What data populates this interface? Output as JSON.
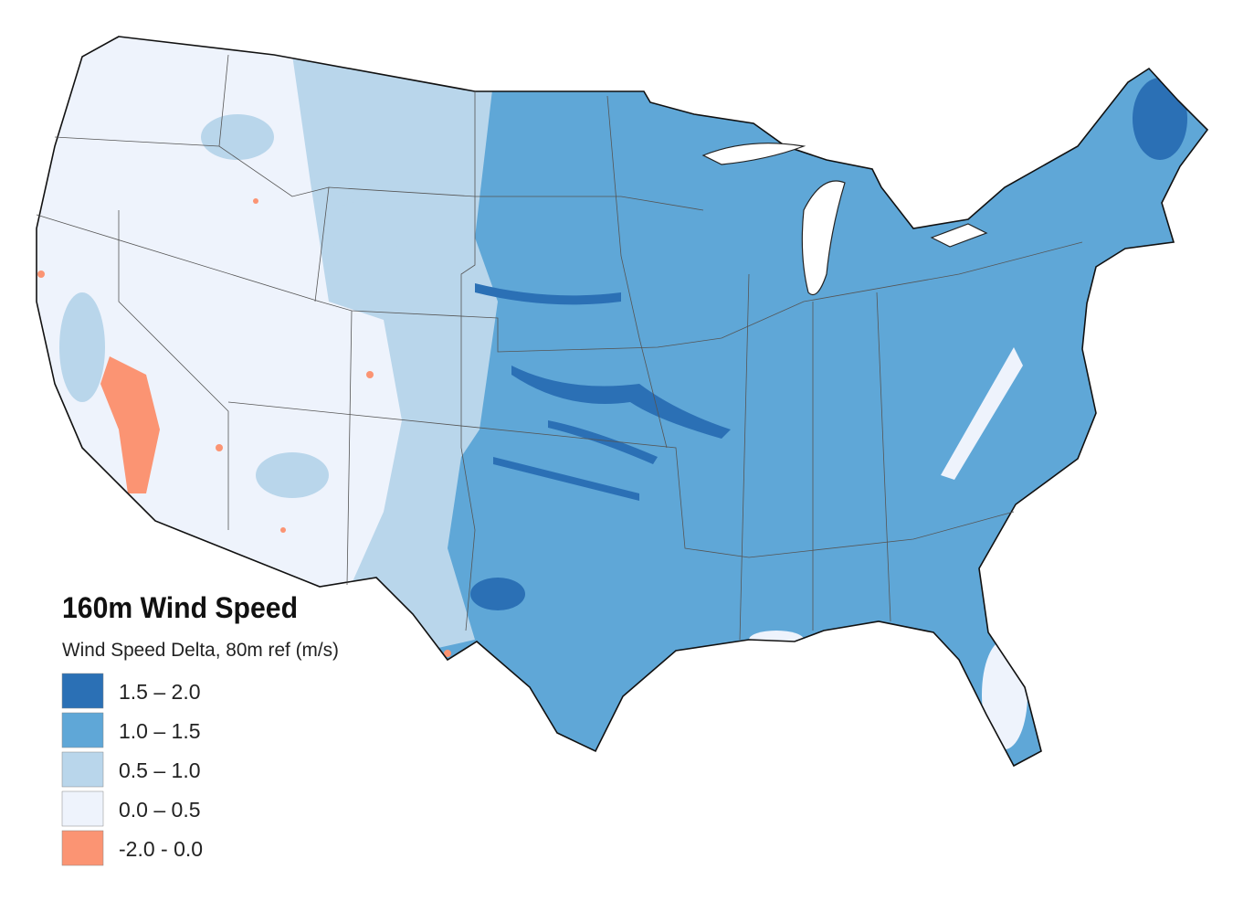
{
  "legend": {
    "title": "160m Wind Speed",
    "subtitle": "Wind Speed Delta, 80m ref (m/s)",
    "items": [
      {
        "label": "1.5 – 2.0",
        "color": "#2b70b5"
      },
      {
        "label": "1.0 – 1.5",
        "color": "#5fa7d7"
      },
      {
        "label": "0.5 – 1.0",
        "color": "#b9d6eb"
      },
      {
        "label": "0.0 – 0.5",
        "color": "#eef3fc"
      },
      {
        "label": "-2.0 - 0.0",
        "color": "#fb9473"
      }
    ]
  }
}
